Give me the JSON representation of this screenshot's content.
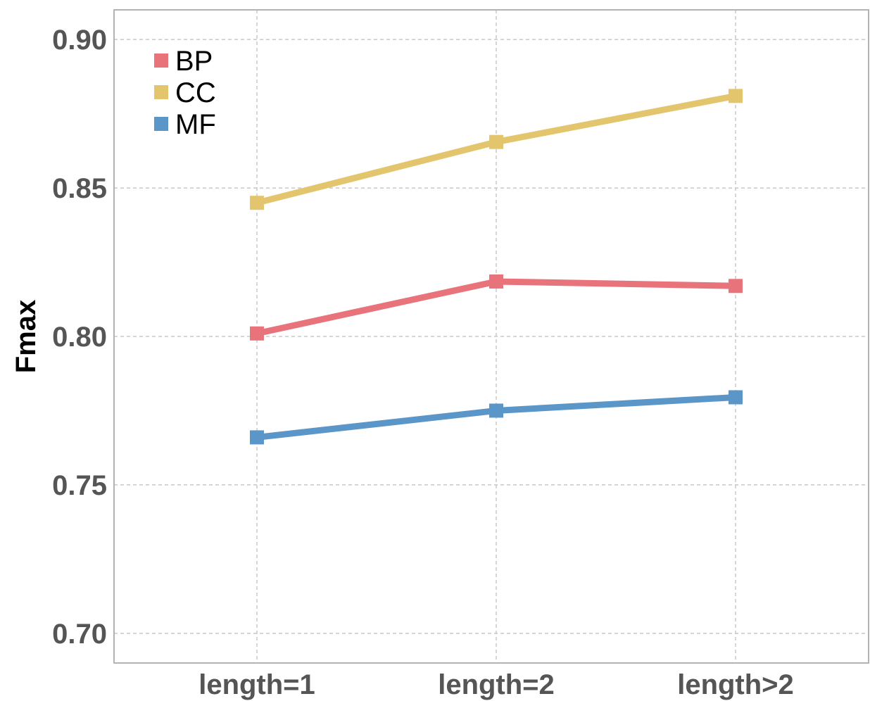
{
  "chart_data": {
    "type": "line",
    "title": "",
    "xlabel": "",
    "ylabel": "Fmax",
    "categories": [
      "length=1",
      "length=2",
      "length>2"
    ],
    "ylim": [
      0.69,
      0.91
    ],
    "yticks": [
      0.7,
      0.75,
      0.8,
      0.85,
      0.9
    ],
    "ytick_labels": [
      "0.70",
      "0.75",
      "0.80",
      "0.85",
      "0.90"
    ],
    "grid": true,
    "legend_position": "top-left",
    "series": [
      {
        "name": "BP",
        "color": "#e8737a",
        "values": [
          0.801,
          0.8185,
          0.817
        ]
      },
      {
        "name": "CC",
        "color": "#e3c56d",
        "values": [
          0.845,
          0.8655,
          0.881
        ]
      },
      {
        "name": "MF",
        "color": "#5a96c8",
        "values": [
          0.766,
          0.775,
          0.7795
        ]
      }
    ]
  }
}
